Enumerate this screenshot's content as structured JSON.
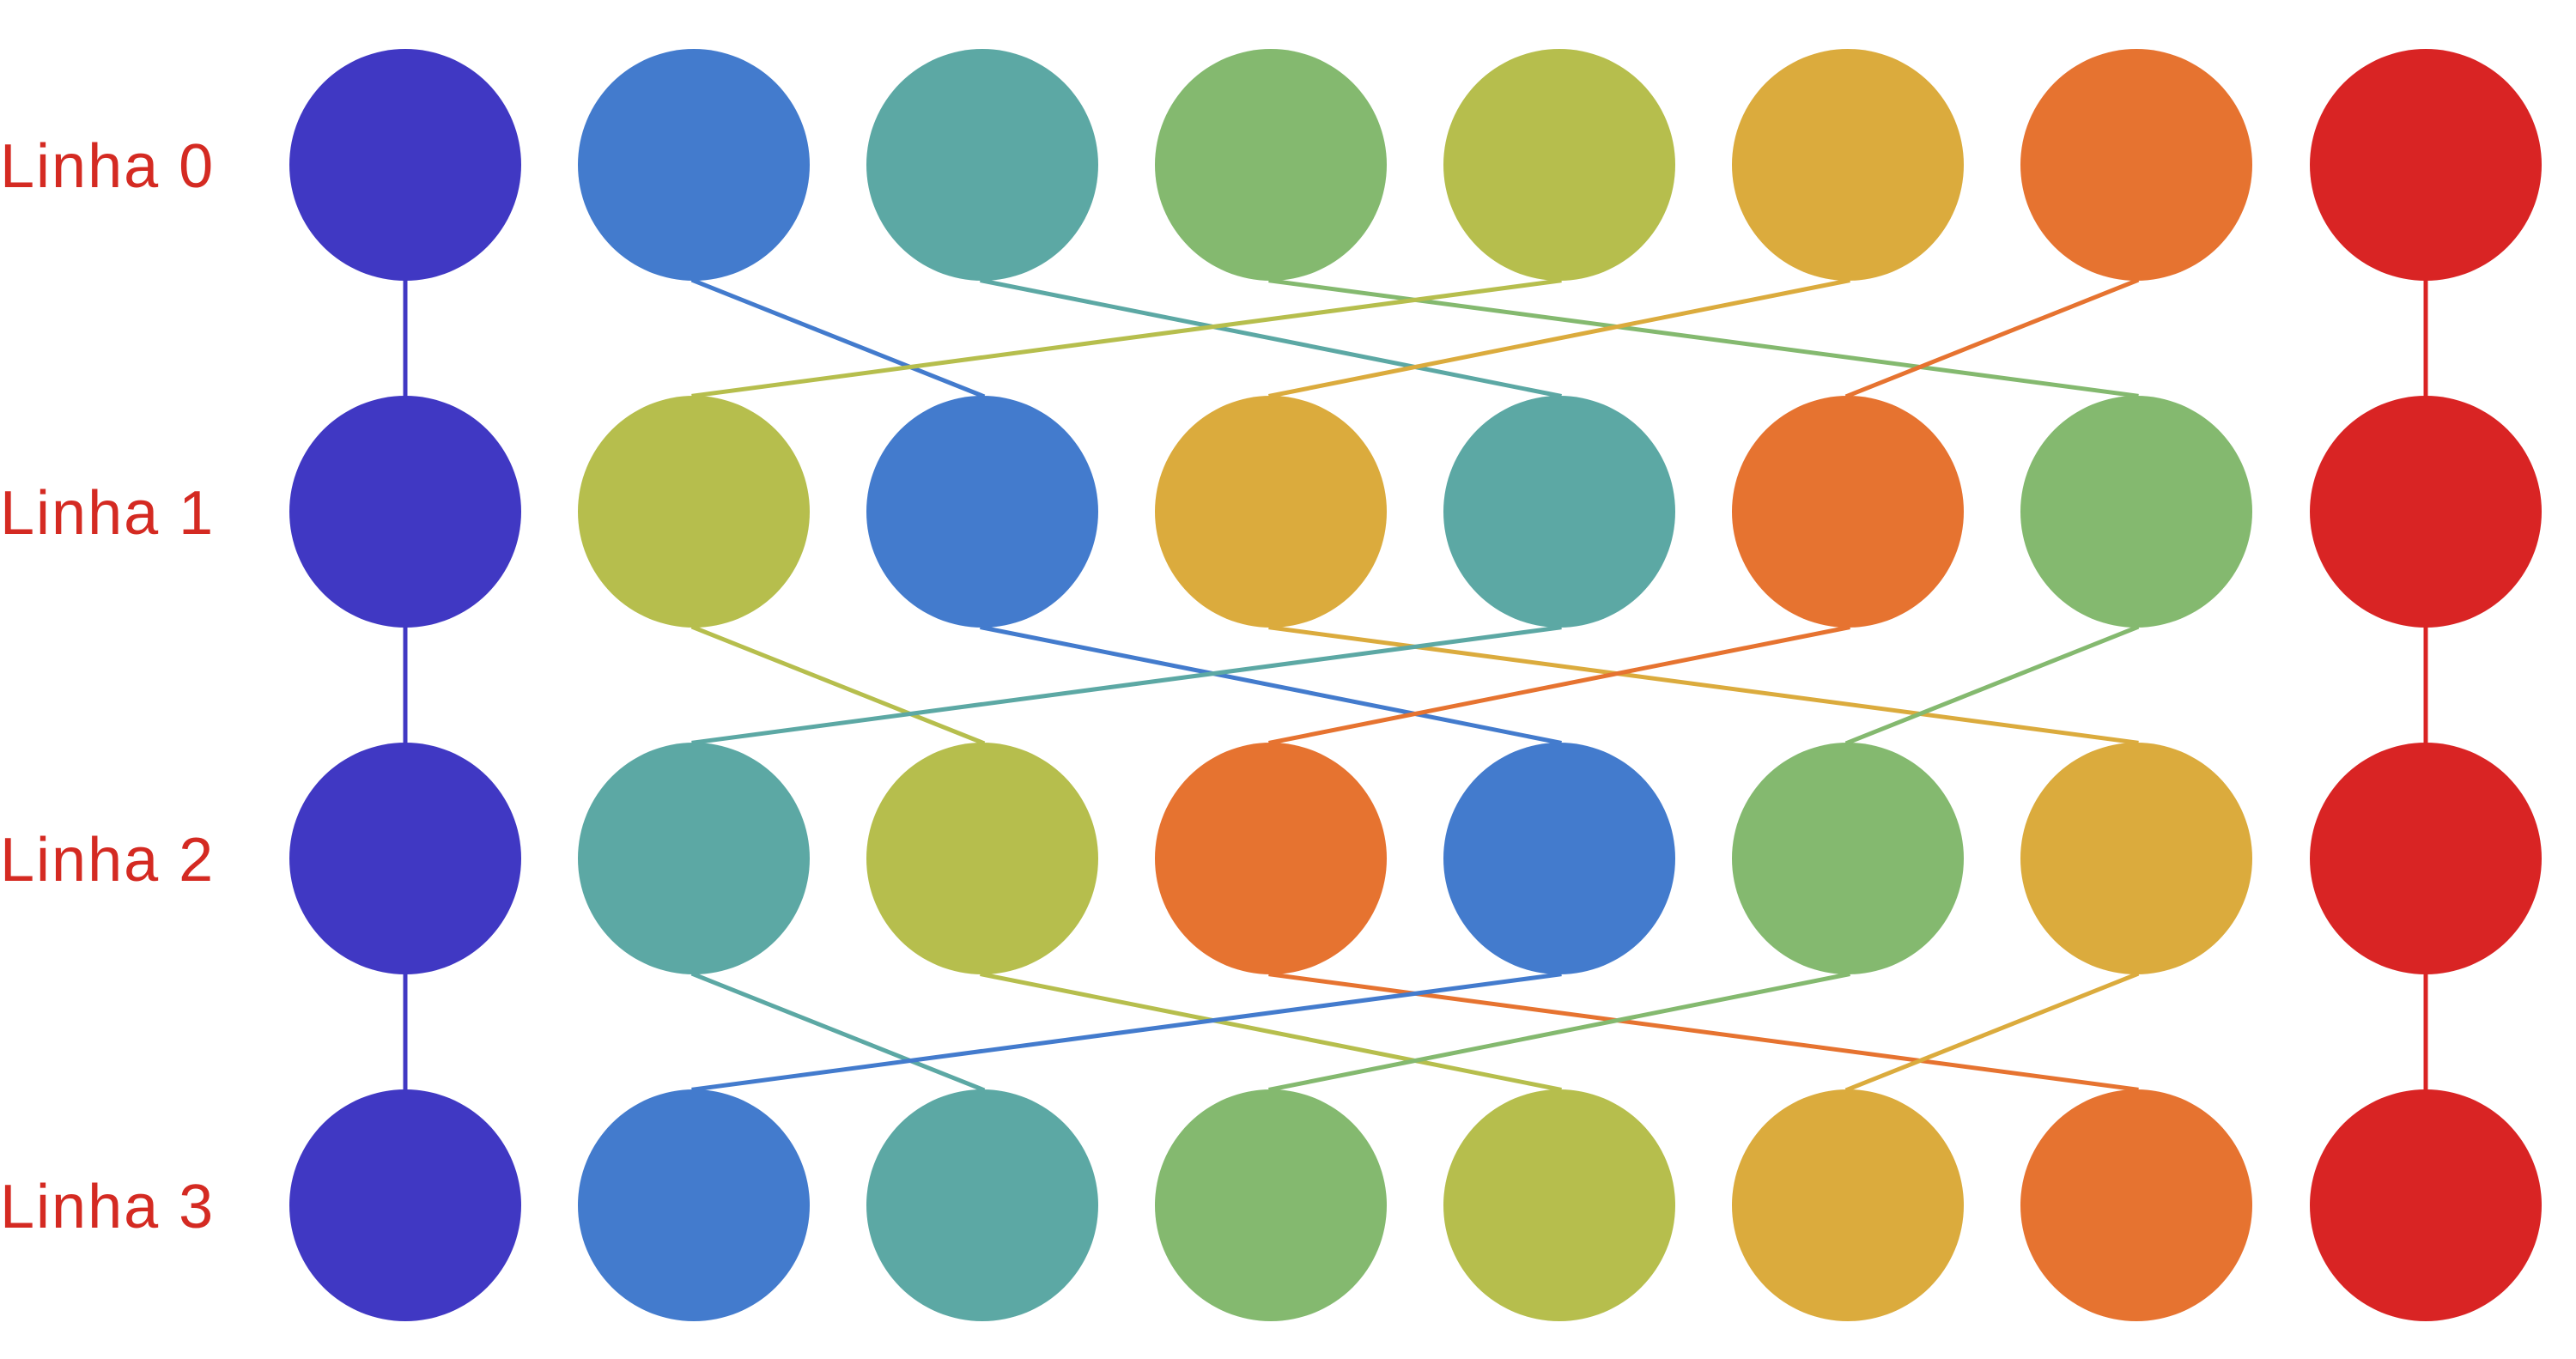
{
  "diagram": {
    "labels": [
      "Linha 0",
      "Linha 1",
      "Linha 2",
      "Linha 3"
    ],
    "label_color": "#d42a22",
    "palette": {
      "indigo": "#4038c3",
      "blue": "#437bcd",
      "teal": "#5ca8a4",
      "green": "#84b96f",
      "lime": "#b6be4d",
      "amber": "#dbab3d",
      "orange": "#e67330",
      "red": "#d92424"
    },
    "rows": [
      [
        "indigo",
        "blue",
        "teal",
        "green",
        "lime",
        "amber",
        "orange",
        "red"
      ],
      [
        "indigo",
        "lime",
        "blue",
        "amber",
        "teal",
        "orange",
        "green",
        "red"
      ],
      [
        "indigo",
        "teal",
        "lime",
        "orange",
        "blue",
        "green",
        "amber",
        "red"
      ],
      [
        "indigo",
        "blue",
        "teal",
        "green",
        "lime",
        "amber",
        "orange",
        "red"
      ]
    ]
  }
}
